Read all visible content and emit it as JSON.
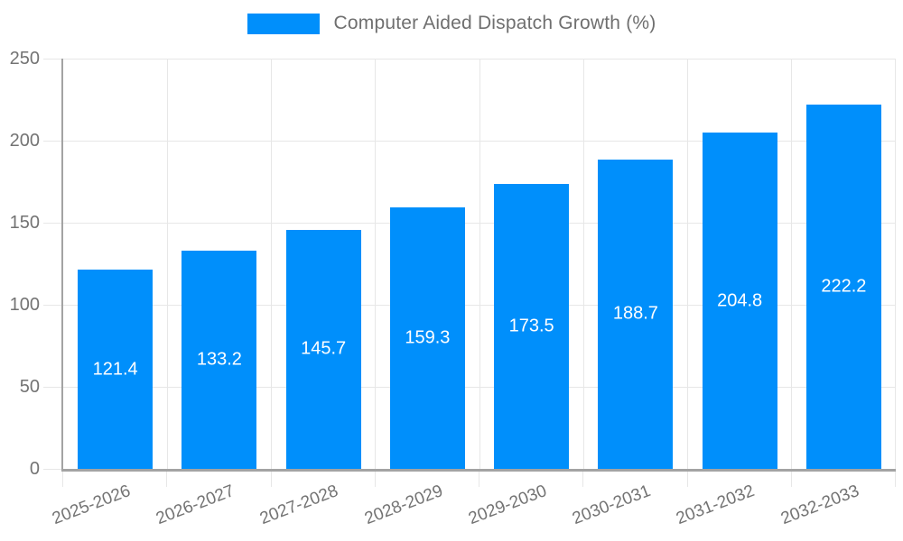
{
  "legend": {
    "label": "Computer Aided Dispatch Growth (%)",
    "swatch_color": "#008FFB"
  },
  "chart_data": {
    "type": "bar",
    "title": "Computer Aided Dispatch Growth (%)",
    "categories": [
      "2025-2026",
      "2026-2027",
      "2027-2028",
      "2028-2029",
      "2029-2030",
      "2030-2031",
      "2031-2032",
      "2032-2033"
    ],
    "values": [
      121.4,
      133.2,
      145.7,
      159.3,
      173.5,
      188.7,
      204.8,
      222.2
    ],
    "data_labels": [
      "121.4",
      "133.2",
      "145.7",
      "159.3",
      "173.5",
      "188.7",
      "204.8",
      "222.2"
    ],
    "xlabel": "",
    "ylabel": "",
    "ylim": [
      0,
      250
    ],
    "yticks": [
      0,
      50,
      100,
      150,
      200,
      250
    ],
    "grid": true,
    "legend_position": "top",
    "colors": {
      "bar": "#008FFB",
      "grid": "#e7e7e7",
      "axis": "#a3a3a3",
      "tick_label": "#737373",
      "legend_label": "#6f6f6f",
      "data_label": "#ffffff"
    }
  }
}
